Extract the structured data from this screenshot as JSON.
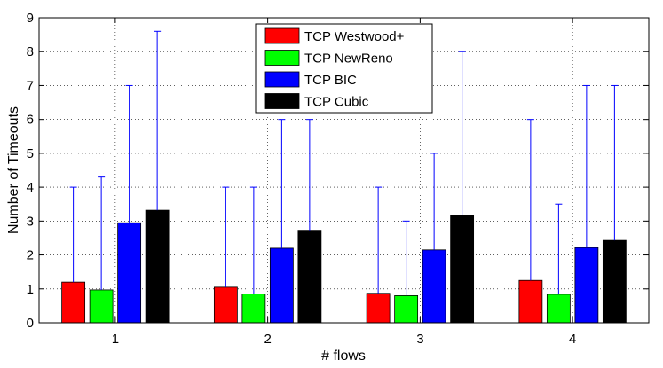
{
  "chart_data": {
    "type": "bar",
    "xlabel": "# flows",
    "ylabel": "Number of Timeouts",
    "categories": [
      "1",
      "2",
      "3",
      "4"
    ],
    "ylim": [
      0,
      9
    ],
    "yticks": [
      "0",
      "1",
      "2",
      "3",
      "4",
      "5",
      "6",
      "7",
      "8",
      "9"
    ],
    "grid": true,
    "legend_position": "top-center",
    "series": [
      {
        "name": "TCP Westwood+",
        "color": "#ff0000",
        "values": [
          1.2,
          1.05,
          0.87,
          1.25
        ],
        "error_max": [
          4.0,
          4.0,
          4.0,
          6.0
        ]
      },
      {
        "name": "TCP NewReno",
        "color": "#00ff00",
        "values": [
          0.97,
          0.85,
          0.8,
          0.84
        ],
        "error_max": [
          4.3,
          4.0,
          3.0,
          3.5
        ]
      },
      {
        "name": "TCP BIC",
        "color": "#0000ff",
        "values": [
          2.95,
          2.2,
          2.15,
          2.22
        ],
        "error_max": [
          7.0,
          6.0,
          5.0,
          7.0
        ]
      },
      {
        "name": "TCP Cubic",
        "color": "#000000",
        "values": [
          3.32,
          2.73,
          3.18,
          2.43
        ],
        "error_max": [
          8.6,
          6.0,
          8.0,
          7.0
        ]
      }
    ],
    "error_bar_color": "#0000ff"
  }
}
